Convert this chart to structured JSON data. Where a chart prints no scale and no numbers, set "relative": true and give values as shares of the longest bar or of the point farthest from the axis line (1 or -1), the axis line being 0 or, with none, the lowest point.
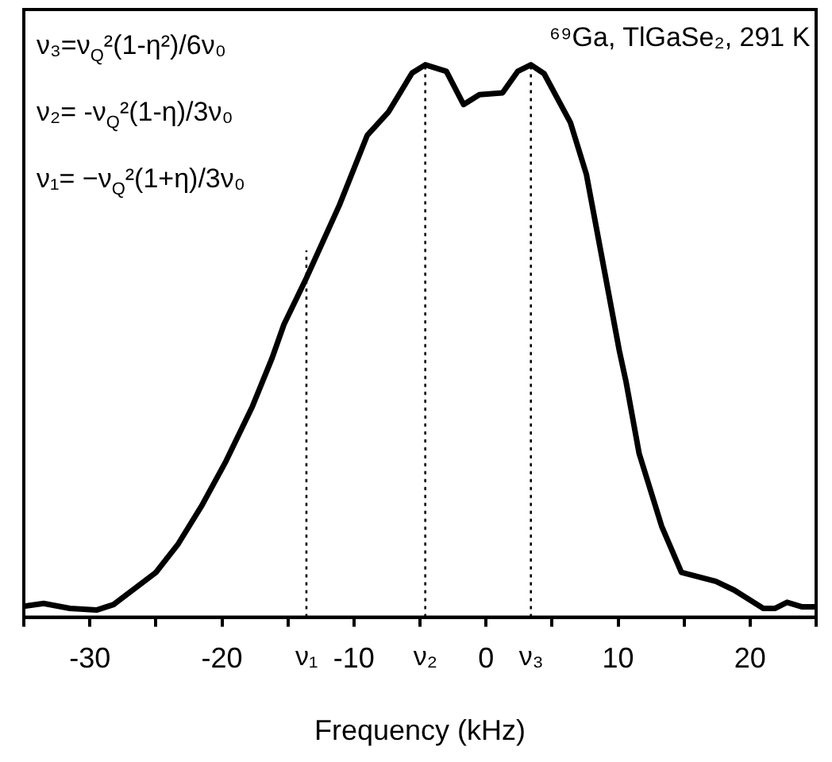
{
  "chart_data": {
    "type": "line",
    "relative": true,
    "xlabel": "Frequency (kHz)",
    "xlim": [
      -35,
      25
    ],
    "xticks": [
      {
        "value": -35,
        "label": null
      },
      -30,
      {
        "value": -25,
        "label": null
      },
      -20,
      {
        "value": -15,
        "label": null
      },
      -10,
      {
        "value": -5,
        "label": null
      },
      0,
      {
        "value": 5,
        "label": null
      },
      10,
      {
        "value": 15,
        "label": null
      },
      20,
      {
        "value": 25,
        "label": null
      }
    ],
    "grid": false,
    "legend": false,
    "marker": "none",
    "line_style": "solid",
    "series": [
      {
        "color": "#000000",
        "x": [
          -35,
          -33.5,
          -31.5,
          -29.5,
          -28.2,
          -25,
          -23.3,
          -21.5,
          -19.7,
          -17.7,
          -16.2,
          -15.3,
          -13.6,
          -11.1,
          -9.0,
          -7.4,
          -5.6,
          -4.6,
          -3.0,
          -1.7,
          -0.5,
          1.25,
          2.4,
          3.4,
          4.4,
          6.4,
          7.6,
          9.0,
          10.1,
          10.6,
          11.6,
          13.3,
          14.8,
          17.4,
          18.8,
          21.0,
          21.9,
          22.8,
          23.9,
          25
        ],
        "values": [
          0.02,
          0.025,
          0.016,
          0.013,
          0.023,
          0.081,
          0.133,
          0.203,
          0.282,
          0.381,
          0.469,
          0.53,
          0.614,
          0.746,
          0.872,
          0.914,
          0.985,
          1.0,
          0.988,
          0.928,
          0.946,
          0.949,
          0.988,
          1.0,
          0.984,
          0.895,
          0.802,
          0.623,
          0.482,
          0.427,
          0.296,
          0.165,
          0.081,
          0.065,
          0.049,
          0.016,
          0.016,
          0.027,
          0.019,
          0.019
        ]
      }
    ],
    "ref_lines": [
      {
        "axis": "x",
        "value": -13.6,
        "label": "ν₁",
        "line_style": "dotted"
      },
      {
        "axis": "x",
        "value": -4.6,
        "label": "ν₂",
        "line_style": "dotted"
      },
      {
        "axis": "x",
        "value": 3.4,
        "label": "ν₃",
        "line_style": "dotted"
      }
    ],
    "annotations": [
      "ν₃=ν$_{Q}$²(1-η²)/6ν₀",
      "ν₂= -ν$_{Q}$²(1-η)/3ν₀",
      "ν₁= −ν$_{Q}$²(1+η)/3ν₀",
      "⁶⁹Ga, TlGaSe₂, 291 K"
    ]
  }
}
